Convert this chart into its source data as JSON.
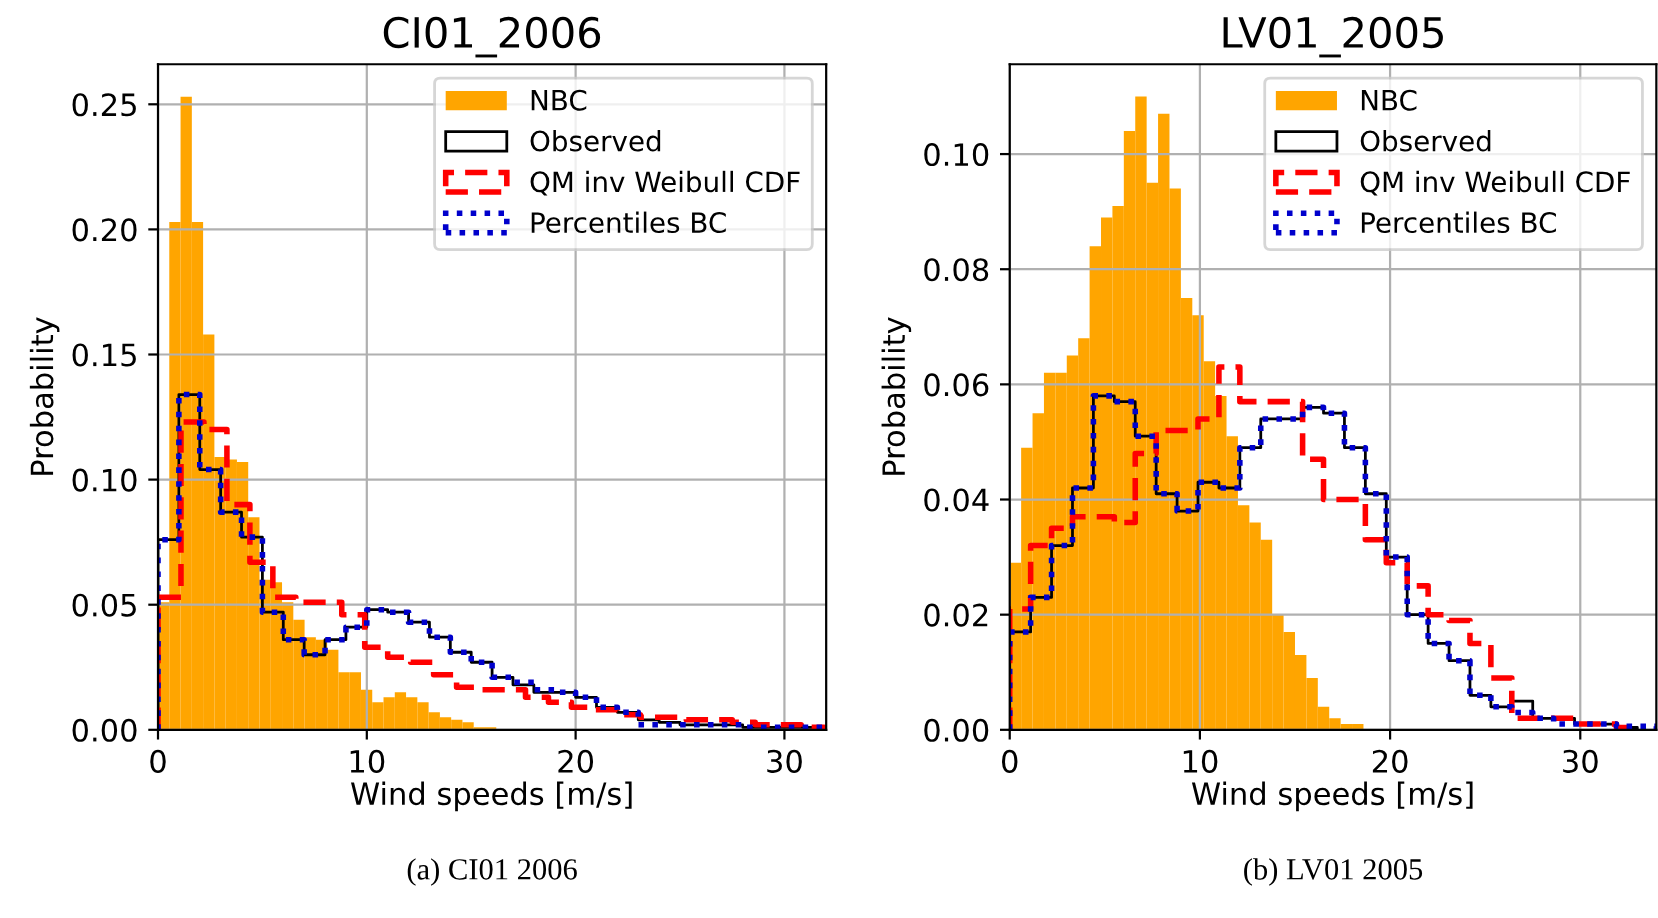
{
  "chart_data": [
    {
      "type": "histogram",
      "title": "CI01_2006",
      "xlabel": "Wind speeds [m/s]",
      "ylabel": "Probability",
      "annotations": [
        "(a) CI01 2006"
      ],
      "xlim": [
        0,
        32
      ],
      "ylim": [
        0,
        0.266
      ],
      "xticks": [
        0,
        10,
        20,
        30
      ],
      "yticks": [
        {
          "value": 0,
          "label": "0.00"
        },
        {
          "value": 0.05,
          "label": "0.05"
        },
        {
          "value": 0.1,
          "label": "0.10"
        },
        {
          "value": 0.15,
          "label": "0.15"
        },
        {
          "value": 0.2,
          "label": "0.20"
        },
        {
          "value": 0.25,
          "label": "0.25"
        }
      ],
      "grid": true,
      "legend": "top right",
      "bins": [
        0,
        0.54,
        1.08,
        1.62,
        2.16,
        2.7,
        3.24,
        3.78,
        4.32,
        4.86,
        5.4,
        5.94,
        6.48,
        7.02,
        7.56,
        8.1,
        8.64,
        9.18,
        9.72,
        10.26,
        10.8,
        11.34,
        11.88,
        12.42,
        12.96,
        13.5,
        14.04,
        14.58,
        15.12,
        15.66,
        16.2
      ],
      "series": [
        {
          "name": "NBC",
          "color": "#ffa500",
          "values": [
            0.051,
            0.203,
            0.253,
            0.203,
            0.158,
            0.109,
            0.108,
            0.107,
            0.085,
            0.06,
            0.059,
            0.051,
            0.044,
            0.037,
            0.036,
            0.032,
            0.023,
            0.023,
            0.016,
            0.011,
            0.013,
            0.015,
            0.013,
            0.011,
            0.007,
            0.005,
            0.004,
            0.003,
            0.001,
            0.001
          ]
        },
        {
          "name": "Observed",
          "type": "step",
          "color": "#000000",
          "line_style": "solid",
          "x": [
            0,
            0,
            1,
            2,
            3,
            4,
            5,
            6,
            7,
            8,
            9,
            10,
            11,
            12,
            13,
            14,
            15,
            16,
            17,
            18,
            19,
            20,
            21,
            22,
            23,
            24,
            25,
            26,
            27,
            28,
            29,
            30,
            31,
            32
          ],
          "values": [
            0,
            0.076,
            0.134,
            0.104,
            0.087,
            0.077,
            0.047,
            0.036,
            0.03,
            0.036,
            0.041,
            0.048,
            0.047,
            0.043,
            0.037,
            0.031,
            0.027,
            0.021,
            0.018,
            0.015,
            0.015,
            0.013,
            0.009,
            0.007,
            0.004,
            0.003,
            0.002,
            0.002,
            0.002,
            0.001,
            0.001,
            0.001,
            0.001,
            0
          ]
        },
        {
          "name": "QM inv Weibull CDF",
          "type": "step",
          "color": "#ff0000",
          "line_style": "dashed",
          "x": [
            0,
            0,
            1.1,
            2.2,
            3.3,
            4.4,
            5.5,
            6.6,
            7.7,
            8.8,
            9.9,
            11,
            12.1,
            13.2,
            14.3,
            15.4,
            16.5,
            17.6,
            18.7,
            19.8,
            20.9,
            22,
            23.1,
            24.2,
            25.3,
            26.4,
            27.5,
            28.6,
            29.7,
            30.8,
            31.9
          ],
          "values": [
            0,
            0.053,
            0.123,
            0.12,
            0.09,
            0.067,
            0.053,
            0.051,
            0.051,
            0.046,
            0.033,
            0.029,
            0.027,
            0.022,
            0.017,
            0.016,
            0.016,
            0.013,
            0.011,
            0.009,
            0.008,
            0.006,
            0.005,
            0.005,
            0.004,
            0.004,
            0.003,
            0.002,
            0.002,
            0.001,
            0
          ]
        },
        {
          "name": "Percentiles BC",
          "type": "step",
          "color": "#0000cc",
          "line_style": "dotted",
          "x": [
            0,
            0,
            1,
            2,
            3,
            4,
            5,
            6,
            7,
            8,
            9,
            10,
            11,
            12,
            13,
            14,
            15,
            16,
            17,
            18,
            19,
            20,
            21,
            22,
            23,
            24,
            25,
            26,
            27,
            28,
            29,
            30,
            31,
            32
          ],
          "values": [
            0,
            0.076,
            0.134,
            0.104,
            0.087,
            0.077,
            0.047,
            0.036,
            0.03,
            0.036,
            0.041,
            0.048,
            0.047,
            0.043,
            0.037,
            0.031,
            0.027,
            0.021,
            0.019,
            0.016,
            0.015,
            0.013,
            0.009,
            0.007,
            0.002,
            0.002,
            0.002,
            0.002,
            0.002,
            0.001,
            0.001,
            0.001,
            0.001,
            0
          ]
        }
      ]
    },
    {
      "type": "histogram",
      "title": "LV01_2005",
      "xlabel": "Wind speeds [m/s]",
      "ylabel": "Probability",
      "annotations": [
        "(b) LV01 2005"
      ],
      "xlim": [
        0,
        34
      ],
      "ylim": [
        0,
        0.1156
      ],
      "xticks": [
        0,
        10,
        20,
        30
      ],
      "yticks": [
        {
          "value": 0,
          "label": "0.00"
        },
        {
          "value": 0.02,
          "label": "0.02"
        },
        {
          "value": 0.04,
          "label": "0.04"
        },
        {
          "value": 0.06,
          "label": "0.06"
        },
        {
          "value": 0.08,
          "label": "0.08"
        },
        {
          "value": 0.1,
          "label": "0.10"
        }
      ],
      "grid": true,
      "legend": "top right",
      "bins": [
        0,
        0.6,
        1.2,
        1.8,
        2.4,
        3,
        3.6,
        4.2,
        4.8,
        5.4,
        6,
        6.6,
        7.2,
        7.8,
        8.4,
        9,
        9.6,
        10.2,
        10.8,
        11.4,
        12,
        12.6,
        13.2,
        13.8,
        14.4,
        15,
        15.6,
        16.2,
        16.8,
        17.4,
        18,
        18.6
      ],
      "series": [
        {
          "name": "NBC",
          "color": "#ffa500",
          "values": [
            0.029,
            0.049,
            0.055,
            0.062,
            0.062,
            0.065,
            0.068,
            0.084,
            0.089,
            0.091,
            0.104,
            0.11,
            0.095,
            0.107,
            0.094,
            0.075,
            0.072,
            0.064,
            0.058,
            0.051,
            0.039,
            0.036,
            0.033,
            0.02,
            0.017,
            0.013,
            0.009,
            0.004,
            0.002,
            0.001,
            0.001
          ]
        },
        {
          "name": "Observed",
          "type": "step",
          "color": "#000000",
          "line_style": "solid",
          "x": [
            0,
            0,
            1.1,
            2.2,
            3.3,
            4.4,
            5.5,
            6.6,
            7.7,
            8.8,
            9.9,
            11,
            12.1,
            13.2,
            14.3,
            15.4,
            16.5,
            17.6,
            18.7,
            19.8,
            20.9,
            22,
            23.1,
            24.2,
            25.3,
            26.4,
            27.5,
            28.6,
            29.7,
            30.8,
            31.9,
            33
          ],
          "values": [
            0,
            0.017,
            0.023,
            0.032,
            0.042,
            0.058,
            0.057,
            0.051,
            0.041,
            0.038,
            0.043,
            0.042,
            0.049,
            0.054,
            0.054,
            0.056,
            0.055,
            0.049,
            0.041,
            0.03,
            0.02,
            0.015,
            0.012,
            0.006,
            0.004,
            0.005,
            0.002,
            0.002,
            0.001,
            0.001,
            0.0004,
            0
          ]
        },
        {
          "name": "QM inv Weibull CDF",
          "type": "step",
          "color": "#ff0000",
          "line_style": "dashed",
          "x": [
            0,
            0,
            1.1,
            2.2,
            3.3,
            4.4,
            5.5,
            6.6,
            7.7,
            8.8,
            9.9,
            11,
            12.1,
            13.2,
            14.3,
            15.4,
            16.5,
            17.6,
            18.7,
            19.8,
            20.9,
            22,
            23.1,
            24.2,
            25.3,
            26.4,
            27.5,
            28.6,
            29.7,
            30.8,
            31.9,
            33
          ],
          "values": [
            0,
            0.021,
            0.032,
            0.035,
            0.037,
            0.037,
            0.036,
            0.048,
            0.052,
            0.052,
            0.054,
            0.063,
            0.057,
            0.057,
            0.057,
            0.047,
            0.04,
            0.04,
            0.033,
            0.029,
            0.025,
            0.02,
            0.019,
            0.015,
            0.009,
            0.002,
            0.002,
            0.002,
            0.001,
            0.001,
            0.0004,
            0
          ]
        },
        {
          "name": "Percentiles BC",
          "type": "step",
          "color": "#0000cc",
          "line_style": "dotted",
          "x": [
            0,
            0,
            1.1,
            2.2,
            3.3,
            4.4,
            5.5,
            6.6,
            7.7,
            8.8,
            9.9,
            11,
            12.1,
            13.2,
            14.3,
            15.4,
            16.5,
            17.6,
            18.7,
            19.8,
            20.9,
            22,
            23.1,
            24.2,
            25.3,
            26.4,
            27.5,
            28.6,
            29.7,
            30.8,
            31.9,
            33,
            34
          ],
          "values": [
            0,
            0.017,
            0.023,
            0.032,
            0.042,
            0.058,
            0.057,
            0.051,
            0.041,
            0.038,
            0.043,
            0.042,
            0.049,
            0.054,
            0.054,
            0.056,
            0.055,
            0.049,
            0.041,
            0.03,
            0.02,
            0.015,
            0.012,
            0.006,
            0.004,
            0.003,
            0.002,
            0.001,
            0.001,
            0.001,
            0.0006,
            0.0006,
            0
          ]
        }
      ]
    }
  ]
}
